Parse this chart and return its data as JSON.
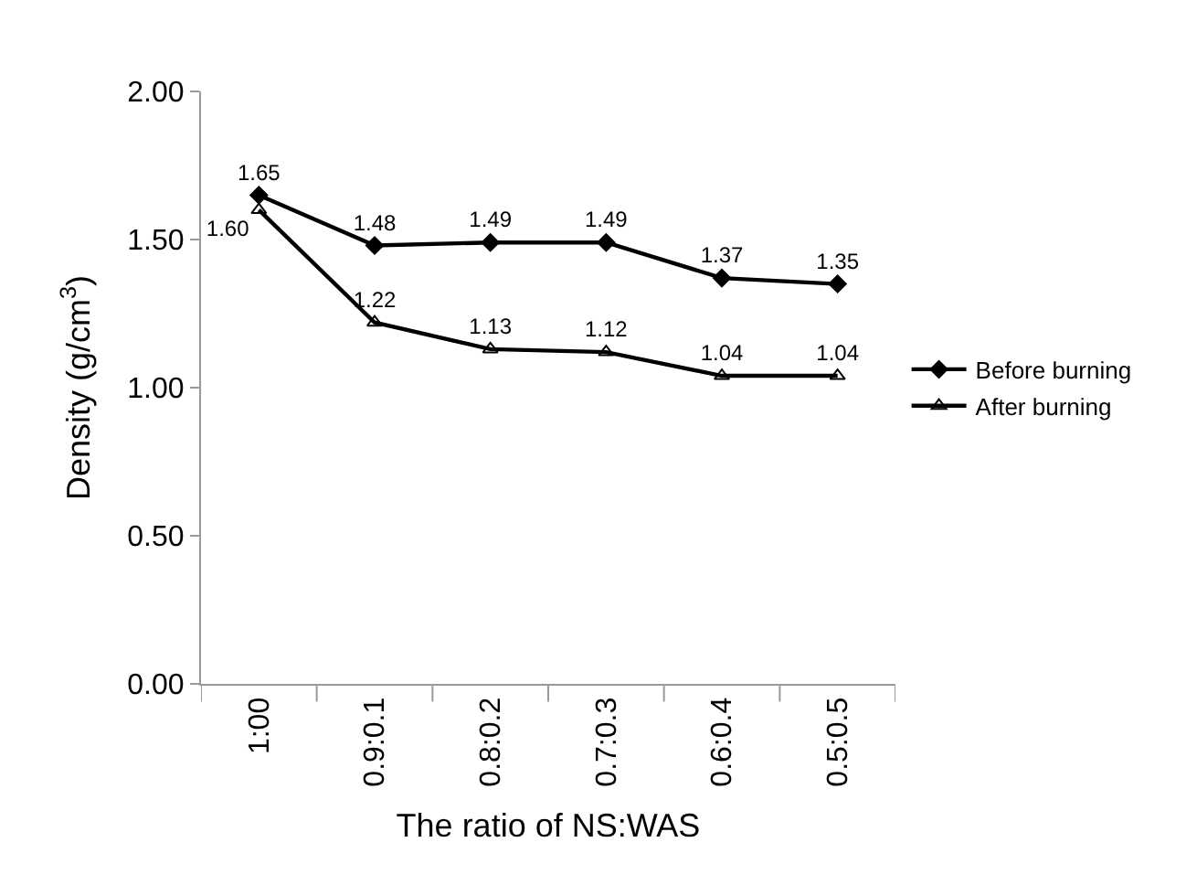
{
  "chart_data": {
    "type": "line",
    "xlabel": "The ratio of NS:WAS",
    "ylabel": "Density (g/cm$^{3}$)",
    "categories": [
      "1:00",
      "0.9:0.1",
      "0.8:0.2",
      "0.7:0.3",
      "0.6:0.4",
      "0.5:0.5"
    ],
    "series": [
      {
        "name": "Before burning",
        "color": "#000000",
        "marker": "diamond",
        "values": [
          1.65,
          1.48,
          1.49,
          1.49,
          1.37,
          1.35
        ],
        "value_labels": [
          "1.65",
          "1.48",
          "1.49",
          "1.49",
          "1.37",
          "1.35"
        ]
      },
      {
        "name": "After burning",
        "color": "#000000",
        "marker": "triangle-open",
        "values": [
          1.6,
          1.22,
          1.13,
          1.12,
          1.04,
          1.04
        ],
        "value_labels": [
          "1.60",
          "1.22",
          "1.13",
          "1.12",
          "1.04",
          "1.04"
        ]
      }
    ],
    "ylim": [
      0,
      2
    ],
    "yticks": [
      {
        "value": 0,
        "label": "0.00"
      },
      {
        "value": 0.5,
        "label": "0.50"
      },
      {
        "value": 1,
        "label": "1.00"
      },
      {
        "value": 1.5,
        "label": "1.50"
      },
      {
        "value": 2,
        "label": "2.00"
      }
    ],
    "legend": "right",
    "line_style": "solid"
  }
}
